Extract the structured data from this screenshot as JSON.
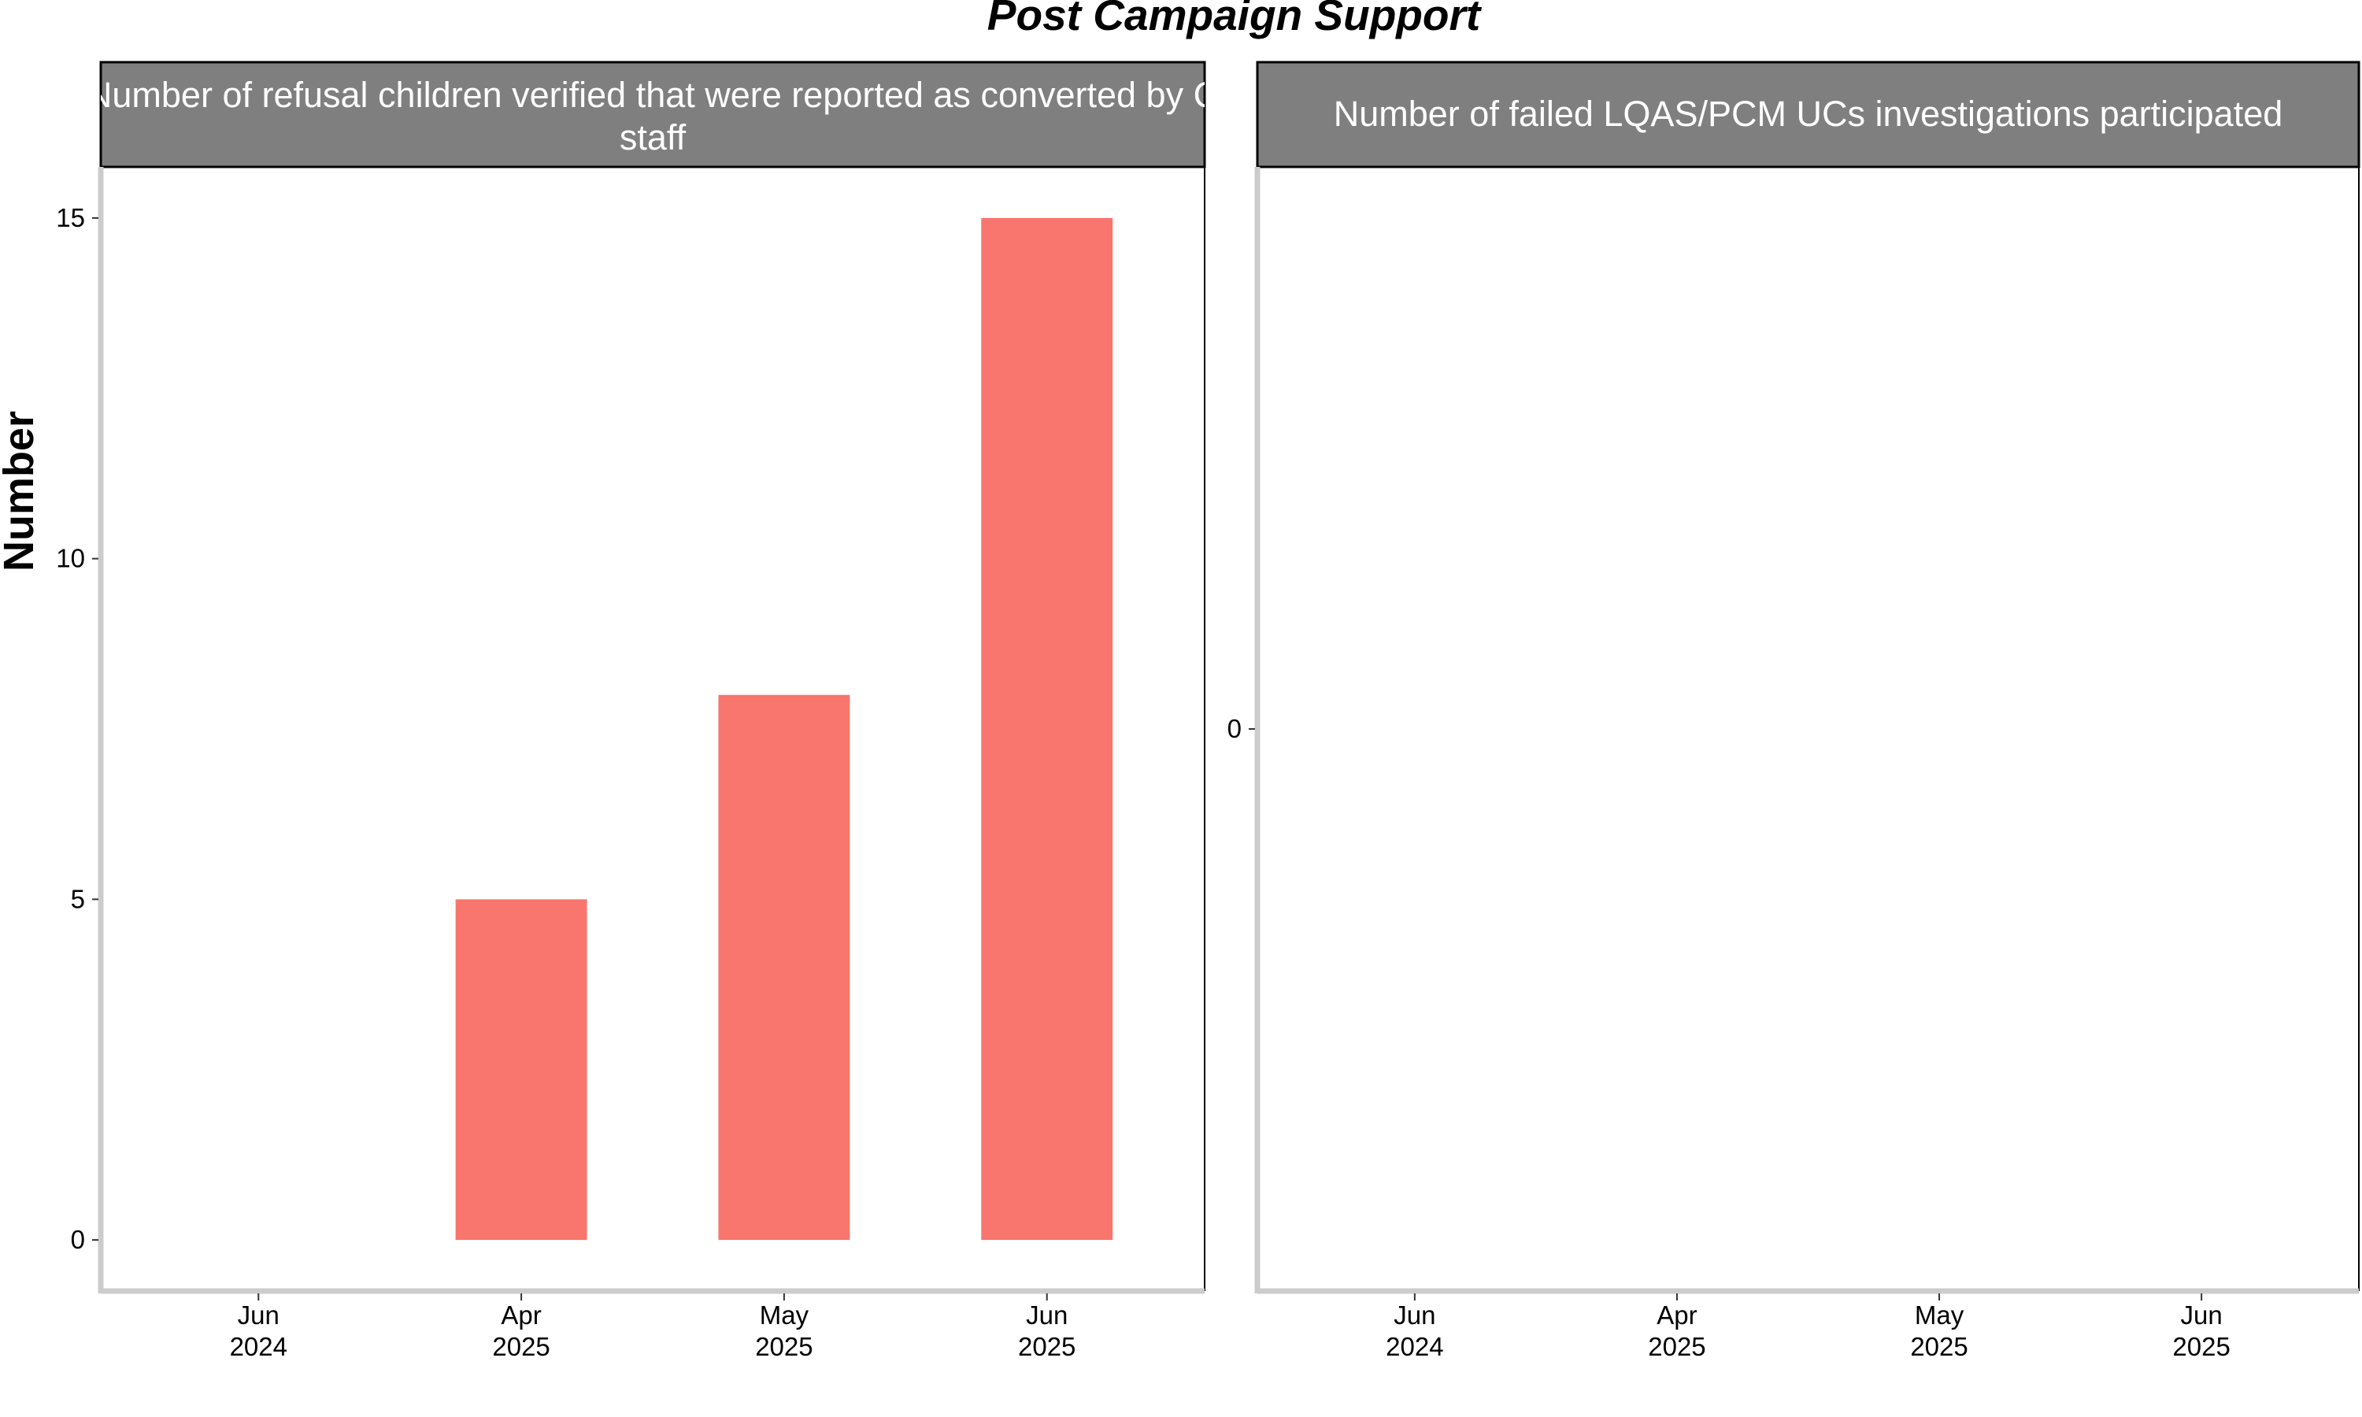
{
  "title": "Post Campaign Support",
  "ylabel": "Number",
  "chart_data": [
    {
      "type": "bar",
      "panel_title_lines": [
        "Number of refusal children verified that were reported as converted by C",
        "staff"
      ],
      "categories": [
        "Jun\n2024",
        "Apr\n2025",
        "May\n2025",
        "Jun\n2025"
      ],
      "category_lines": [
        [
          "Jun",
          "2024"
        ],
        [
          "Apr",
          "2025"
        ],
        [
          "May",
          "2025"
        ],
        [
          "Jun",
          "2025"
        ]
      ],
      "values": [
        null,
        5,
        8,
        15
      ],
      "ylim": [
        -0.75,
        15.75
      ],
      "yticks": [
        0,
        5,
        10,
        15
      ],
      "bar_color": "#F8766D",
      "grid": false
    },
    {
      "type": "bar",
      "panel_title_lines": [
        "Number of failed LQAS/PCM UCs investigations participated"
      ],
      "categories": [
        "Jun\n2024",
        "Apr\n2025",
        "May\n2025",
        "Jun\n2025"
      ],
      "category_lines": [
        [
          "Jun",
          "2024"
        ],
        [
          "Apr",
          "2025"
        ],
        [
          "May",
          "2025"
        ],
        [
          "Jun",
          "2025"
        ]
      ],
      "values": [
        null,
        null,
        null,
        null
      ],
      "ylim": [
        -1,
        1
      ],
      "yticks": [
        0
      ],
      "bar_color": "#F8766D",
      "grid": false
    }
  ],
  "colors": {
    "strip_fill": "#7f7f7f",
    "strip_text": "#ffffff",
    "axis_line": "#cccccc",
    "panel_border": "#000000"
  }
}
